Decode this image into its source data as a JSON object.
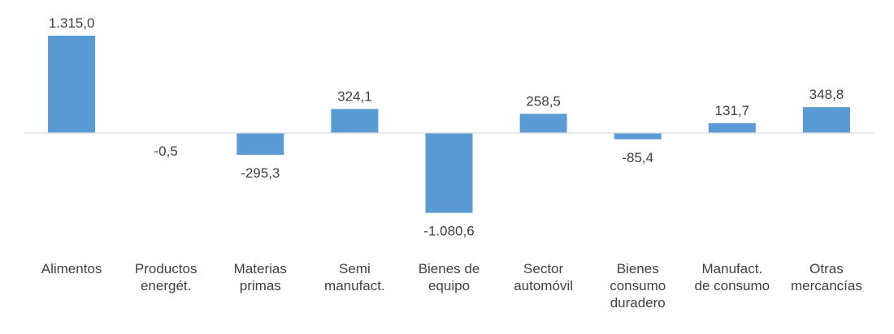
{
  "chart_data": {
    "type": "bar",
    "categories": [
      [
        "Alimentos"
      ],
      [
        "Productos",
        "energét."
      ],
      [
        "Materias",
        "primas"
      ],
      [
        "Semi",
        "manufact."
      ],
      [
        "Bienes de",
        "equipo"
      ],
      [
        "Sector",
        "automóvil"
      ],
      [
        "Bienes",
        "consumo",
        "duradero"
      ],
      [
        "Manufact.",
        "de consumo"
      ],
      [
        "Otras",
        "mercancías"
      ]
    ],
    "values": [
      1315.0,
      -0.5,
      -295.3,
      324.1,
      -1080.6,
      258.5,
      -85.4,
      131.7,
      348.8
    ],
    "value_labels": [
      "1.315,0",
      "-0,5",
      "-295,3",
      "324,1",
      "-1.080,6",
      "258,5",
      "-85,4",
      "131,7",
      "348,8"
    ],
    "ylim": [
      -1100,
      1320
    ],
    "grid": false,
    "bar_color": "#5b9bd5",
    "axis_color": "#d9d9d9",
    "text_color": "#404040"
  }
}
